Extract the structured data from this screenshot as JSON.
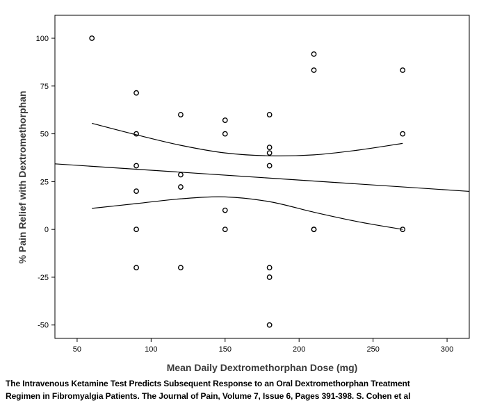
{
  "chart_data": {
    "type": "scatter",
    "title": "",
    "xlabel": "Mean Daily Dextromethorphan Dose (mg)",
    "ylabel": "% Pain Relief with Dextromethorphan",
    "xlim": [
      35,
      315
    ],
    "ylim": [
      -57,
      112
    ],
    "x_ticks": [
      50,
      100,
      150,
      200,
      250,
      300
    ],
    "y_ticks": [
      100,
      75,
      50,
      25,
      0,
      -25,
      -50
    ],
    "grid": false,
    "points": [
      {
        "x": 60,
        "y": 100
      },
      {
        "x": 90,
        "y": 71.4
      },
      {
        "x": 90,
        "y": 50
      },
      {
        "x": 90,
        "y": 33.3
      },
      {
        "x": 90,
        "y": 20
      },
      {
        "x": 90,
        "y": 0
      },
      {
        "x": 90,
        "y": -20
      },
      {
        "x": 120,
        "y": 60
      },
      {
        "x": 120,
        "y": 28.6
      },
      {
        "x": 120,
        "y": 22.2
      },
      {
        "x": 120,
        "y": -20
      },
      {
        "x": 150,
        "y": 57.1
      },
      {
        "x": 150,
        "y": 50
      },
      {
        "x": 150,
        "y": 10
      },
      {
        "x": 150,
        "y": 0
      },
      {
        "x": 180,
        "y": 60
      },
      {
        "x": 180,
        "y": 42.9
      },
      {
        "x": 180,
        "y": 40
      },
      {
        "x": 180,
        "y": 33.3
      },
      {
        "x": 180,
        "y": -20
      },
      {
        "x": 180,
        "y": -25
      },
      {
        "x": 180,
        "y": -50
      },
      {
        "x": 210,
        "y": 91.7
      },
      {
        "x": 210,
        "y": 83.3
      },
      {
        "x": 210,
        "y": 0
      },
      {
        "x": 210,
        "y": 0
      },
      {
        "x": 270,
        "y": 83.3
      },
      {
        "x": 270,
        "y": 50
      },
      {
        "x": 270,
        "y": 0
      }
    ],
    "fit_line": [
      {
        "x": 35,
        "y": 34.3
      },
      {
        "x": 315,
        "y": 19.9
      }
    ],
    "upper_band": [
      {
        "x": 60,
        "y": 55.5
      },
      {
        "x": 90,
        "y": 49.5
      },
      {
        "x": 120,
        "y": 44.0
      },
      {
        "x": 150,
        "y": 40.0
      },
      {
        "x": 180,
        "y": 38.5
      },
      {
        "x": 210,
        "y": 39.0
      },
      {
        "x": 240,
        "y": 41.5
      },
      {
        "x": 270,
        "y": 45.0
      }
    ],
    "lower_band": [
      {
        "x": 60,
        "y": 11.0
      },
      {
        "x": 90,
        "y": 13.5
      },
      {
        "x": 120,
        "y": 16.0
      },
      {
        "x": 150,
        "y": 17.0
      },
      {
        "x": 180,
        "y": 14.5
      },
      {
        "x": 210,
        "y": 9.0
      },
      {
        "x": 240,
        "y": 4.0
      },
      {
        "x": 270,
        "y": 0.0
      }
    ]
  },
  "caption": {
    "line1": "The Intravenous Ketamine Test Predicts Subsequent Response to an Oral Dextromethorphan Treatment",
    "line2": "Regimen in Fibromyalgia Patients. The Journal of Pain, Volume 7, Issue 6, Pages 391-398. S. Cohen et al"
  }
}
